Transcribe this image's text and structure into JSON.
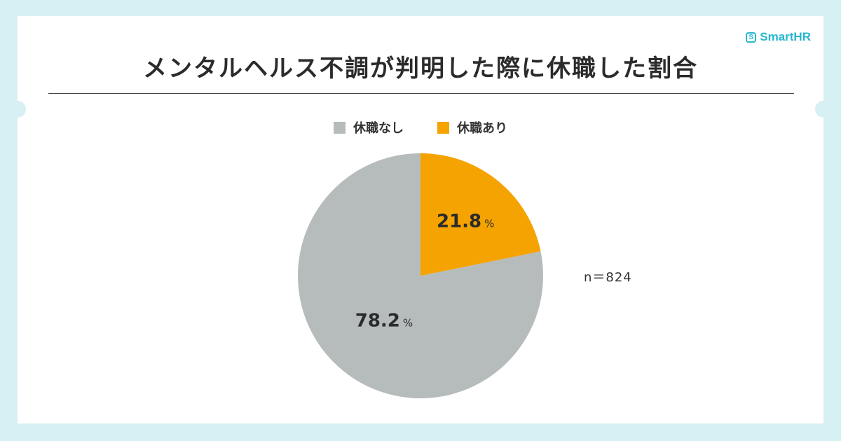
{
  "brand": {
    "name": "SmartHR",
    "mark": "S",
    "color": "#27b7cf"
  },
  "chart_data": {
    "type": "pie",
    "title": "メンタルヘルス不調が判明した際に休職した割合",
    "legend_placement": "top",
    "unit": "%",
    "sample_size_label": "n＝824",
    "slices": [
      {
        "name": "休職なし",
        "value": 78.2,
        "label": "78.2",
        "color": "#b6bcbc"
      },
      {
        "name": "休職あり",
        "value": 21.8,
        "label": "21.8",
        "color": "#f5a300"
      }
    ]
  }
}
